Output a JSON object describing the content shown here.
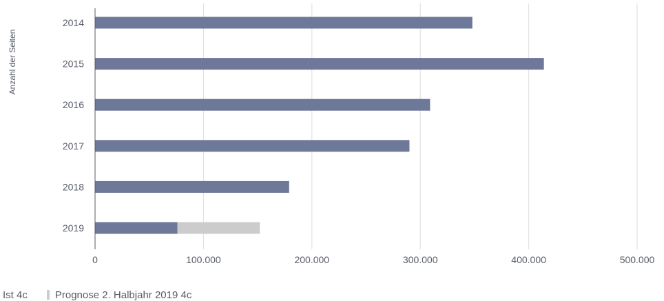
{
  "chart_data": {
    "type": "bar",
    "orientation": "horizontal",
    "stacked": true,
    "categories": [
      "2014",
      "2015",
      "2016",
      "2017",
      "2018",
      "2019"
    ],
    "series": [
      {
        "name": "Ist 4c",
        "color": "#6e7899",
        "values": [
          348000,
          414000,
          309000,
          290000,
          179000,
          76000
        ]
      },
      {
        "name": "Prognose 2. Halbjahr 2019 4c",
        "color": "#cccccc",
        "values": [
          0,
          0,
          0,
          0,
          0,
          76000
        ]
      }
    ],
    "ylabel": "Anzahl der Seiten",
    "xlim": [
      0,
      500000
    ],
    "xticks": [
      0,
      100000,
      200000,
      300000,
      400000,
      500000
    ],
    "xtick_labels": [
      "0",
      "100.000",
      "200.000",
      "300.000",
      "400.000",
      "500.000"
    ],
    "grid": true,
    "legend_position": "bottom-left"
  }
}
